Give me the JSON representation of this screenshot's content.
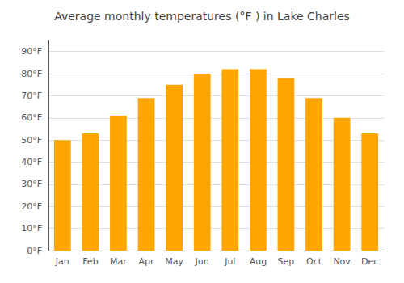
{
  "chart_data": {
    "type": "bar",
    "title": "Average monthly temperatures (°F ) in Lake Charles",
    "categories": [
      "Jan",
      "Feb",
      "Mar",
      "Apr",
      "May",
      "Jun",
      "Jul",
      "Aug",
      "Sep",
      "Oct",
      "Nov",
      "Dec"
    ],
    "values": [
      50,
      53,
      61,
      69,
      75,
      80,
      82,
      82,
      78,
      69,
      60,
      53
    ],
    "color": "#FFA500",
    "ylim": [
      0,
      95
    ],
    "yticks": [
      {
        "value": 0,
        "label": "0°F"
      },
      {
        "value": 10,
        "label": "10°F"
      },
      {
        "value": 20,
        "label": "20°F"
      },
      {
        "value": 30,
        "label": "30°F"
      },
      {
        "value": 40,
        "label": "40°F"
      },
      {
        "value": 50,
        "label": "50°F"
      },
      {
        "value": 60,
        "label": "60°F"
      },
      {
        "value": 70,
        "label": "70°F"
      },
      {
        "value": 80,
        "label": "80°F"
      },
      {
        "value": 90,
        "label": "90°F"
      }
    ],
    "grid": true
  }
}
